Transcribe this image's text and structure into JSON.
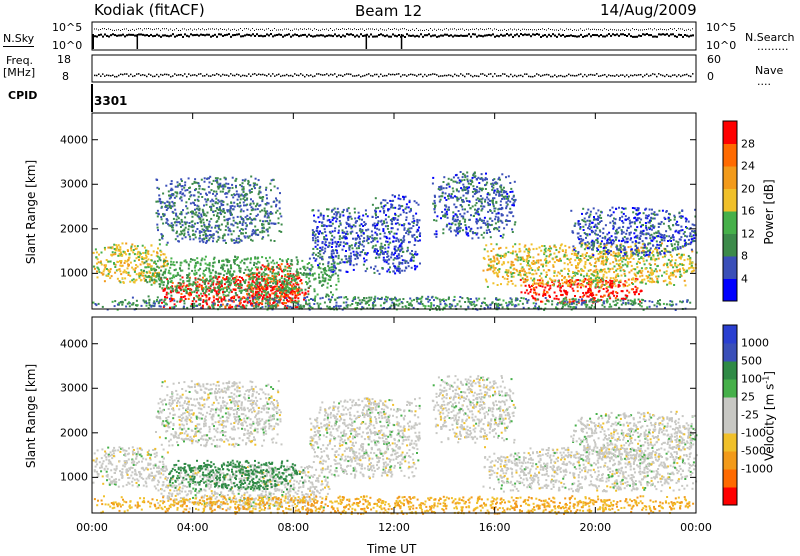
{
  "header": {
    "station": "Kodiak (fitACF)",
    "beam": "Beam 12",
    "date": "14/Aug/2009"
  },
  "top_panels": {
    "nsky_label": "N.Sky",
    "nsearch_label": "N.Search",
    "nsky_ticks": [
      "10^5",
      "10^0"
    ],
    "nsearch_ticks": [
      "10^5",
      "10^0"
    ],
    "freq_label_1": "Freq.",
    "freq_label_2": "[MHz]",
    "freq_ticks": [
      "18",
      "8"
    ],
    "nave_label": "Nave",
    "nave_ticks": [
      "60",
      "0"
    ],
    "cpid_label": "CPID",
    "cpid_value": "3301"
  },
  "colors": {
    "power": [
      "#0000ff",
      "#3a4fb8",
      "#3c8a4a",
      "#46b04a",
      "#f0c02a",
      "#f29a1a",
      "#ff6a00",
      "#ff0000"
    ],
    "velocity": [
      "#ff0000",
      "#ff6a00",
      "#f29a1a",
      "#f0c02a",
      "#c8c8c4",
      "#c8c8c4",
      "#46b04a",
      "#2f8a46",
      "#3a4fb8",
      "#2a3fd0"
    ],
    "ground": "#c8c8c4"
  },
  "chart_data": [
    {
      "type": "heatmap",
      "name": "power",
      "ylabel": "Slant Range [km]",
      "yticks": [
        1000,
        2000,
        3000,
        4000
      ],
      "ylim": [
        200,
        4600
      ],
      "xlim": [
        0,
        24
      ],
      "colorbar": {
        "label": "Power [dB]",
        "ticks": [
          "4",
          "8",
          "12",
          "16",
          "20",
          "24",
          "28"
        ],
        "range": [
          0,
          32
        ]
      },
      "regions": [
        {
          "t0": 2.7,
          "t1": 8.6,
          "r0": 250,
          "r1": 950,
          "value": 30
        },
        {
          "t0": 6.1,
          "t1": 8.3,
          "r0": 250,
          "r1": 1250,
          "value": 28
        },
        {
          "t0": 17.0,
          "t1": 21.8,
          "r0": 350,
          "r1": 900,
          "value": 30
        },
        {
          "t0": 0.0,
          "t1": 3.0,
          "r0": 800,
          "r1": 1700,
          "value": 18
        },
        {
          "t0": 15.5,
          "t1": 24.0,
          "r0": 700,
          "r1": 1700,
          "value": 18
        },
        {
          "t0": 2.0,
          "t1": 9.8,
          "r0": 500,
          "r1": 1400,
          "value": 12
        },
        {
          "t0": 2.5,
          "t1": 7.5,
          "r0": 1700,
          "r1": 3200,
          "value": 8
        },
        {
          "t0": 8.6,
          "t1": 11.0,
          "r0": 1000,
          "r1": 2500,
          "value": 6
        },
        {
          "t0": 11.0,
          "t1": 13.0,
          "r0": 1000,
          "r1": 2800,
          "value": 6
        },
        {
          "t0": 13.5,
          "t1": 16.8,
          "r0": 1800,
          "r1": 3300,
          "value": 7
        },
        {
          "t0": 19.0,
          "t1": 24.0,
          "r0": 1400,
          "r1": 2500,
          "value": 6
        },
        {
          "t0": 0.0,
          "t1": 24.0,
          "r0": 200,
          "r1": 500,
          "value": 10
        }
      ]
    },
    {
      "type": "heatmap",
      "name": "velocity",
      "ylabel": "Slant Range [km]",
      "yticks": [
        1000,
        2000,
        3000,
        4000
      ],
      "ylim": [
        200,
        4600
      ],
      "xlim": [
        0,
        24
      ],
      "xlabel": "Time UT",
      "xticks": [
        "00:00",
        "04:00",
        "08:00",
        "12:00",
        "16:00",
        "20:00",
        "00:00"
      ],
      "xtick_values": [
        0,
        4,
        8,
        12,
        16,
        20,
        24
      ],
      "colorbar": {
        "label": "Velocity [m s^-1]",
        "ticks": [
          "1000",
          "500",
          "100",
          "25",
          "-25",
          "-100",
          "-500",
          "-1000"
        ]
      },
      "regions": [
        {
          "t0": 0.0,
          "t1": 3.0,
          "r0": 800,
          "r1": 1700,
          "value": 0
        },
        {
          "t0": 15.5,
          "t1": 24.0,
          "r0": 700,
          "r1": 1700,
          "value": 0
        },
        {
          "t0": 2.5,
          "t1": 9.5,
          "r0": 300,
          "r1": 1300,
          "value": 0
        },
        {
          "t0": 3.0,
          "t1": 8.4,
          "r0": 750,
          "r1": 1400,
          "value": 150
        },
        {
          "t0": 2.5,
          "t1": 7.5,
          "r0": 1700,
          "r1": 3200,
          "value": 0
        },
        {
          "t0": 8.6,
          "t1": 13.0,
          "r0": 1000,
          "r1": 2800,
          "value": 0
        },
        {
          "t0": 13.5,
          "t1": 16.8,
          "r0": 1800,
          "r1": 3300,
          "value": 0
        },
        {
          "t0": 19.0,
          "t1": 24.0,
          "r0": 1400,
          "r1": 2500,
          "value": 0
        },
        {
          "t0": 0.0,
          "t1": 24.0,
          "r0": 200,
          "r1": 600,
          "value": -100
        }
      ]
    }
  ]
}
